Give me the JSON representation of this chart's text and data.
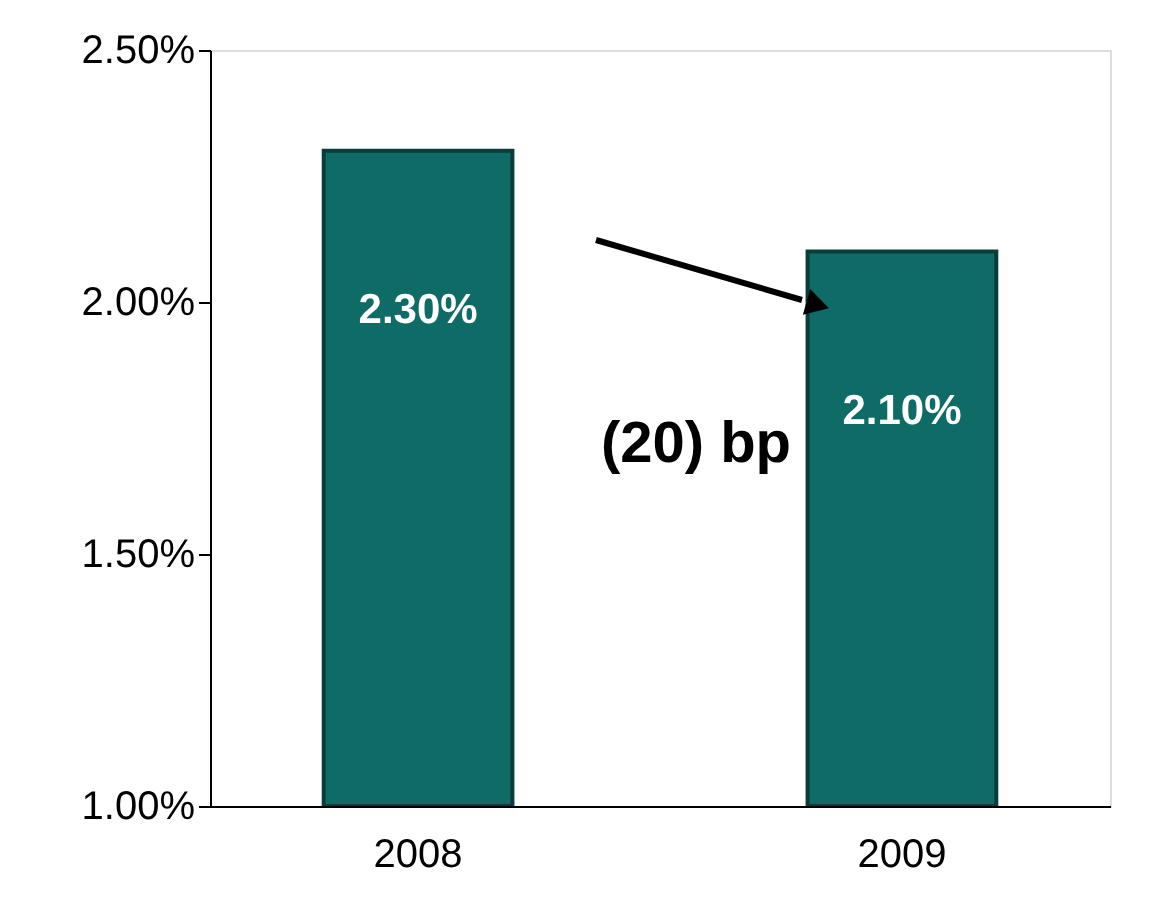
{
  "chart_data": {
    "type": "bar",
    "categories": [
      "2008",
      "2009"
    ],
    "values": [
      2.3,
      2.1
    ],
    "color": "#0e6b66",
    "value_labels": [
      "2.30%",
      "2.10%"
    ],
    "ylim": [
      1.0,
      2.5
    ],
    "yticks": [
      {
        "value": 1.0,
        "label": "1.00%"
      },
      {
        "value": 1.5,
        "label": "1.50%"
      },
      {
        "value": 2.0,
        "label": "2.00%"
      },
      {
        "value": 2.5,
        "label": "2.50%"
      }
    ],
    "annotations": [
      "(20) bp"
    ],
    "grid": false
  }
}
